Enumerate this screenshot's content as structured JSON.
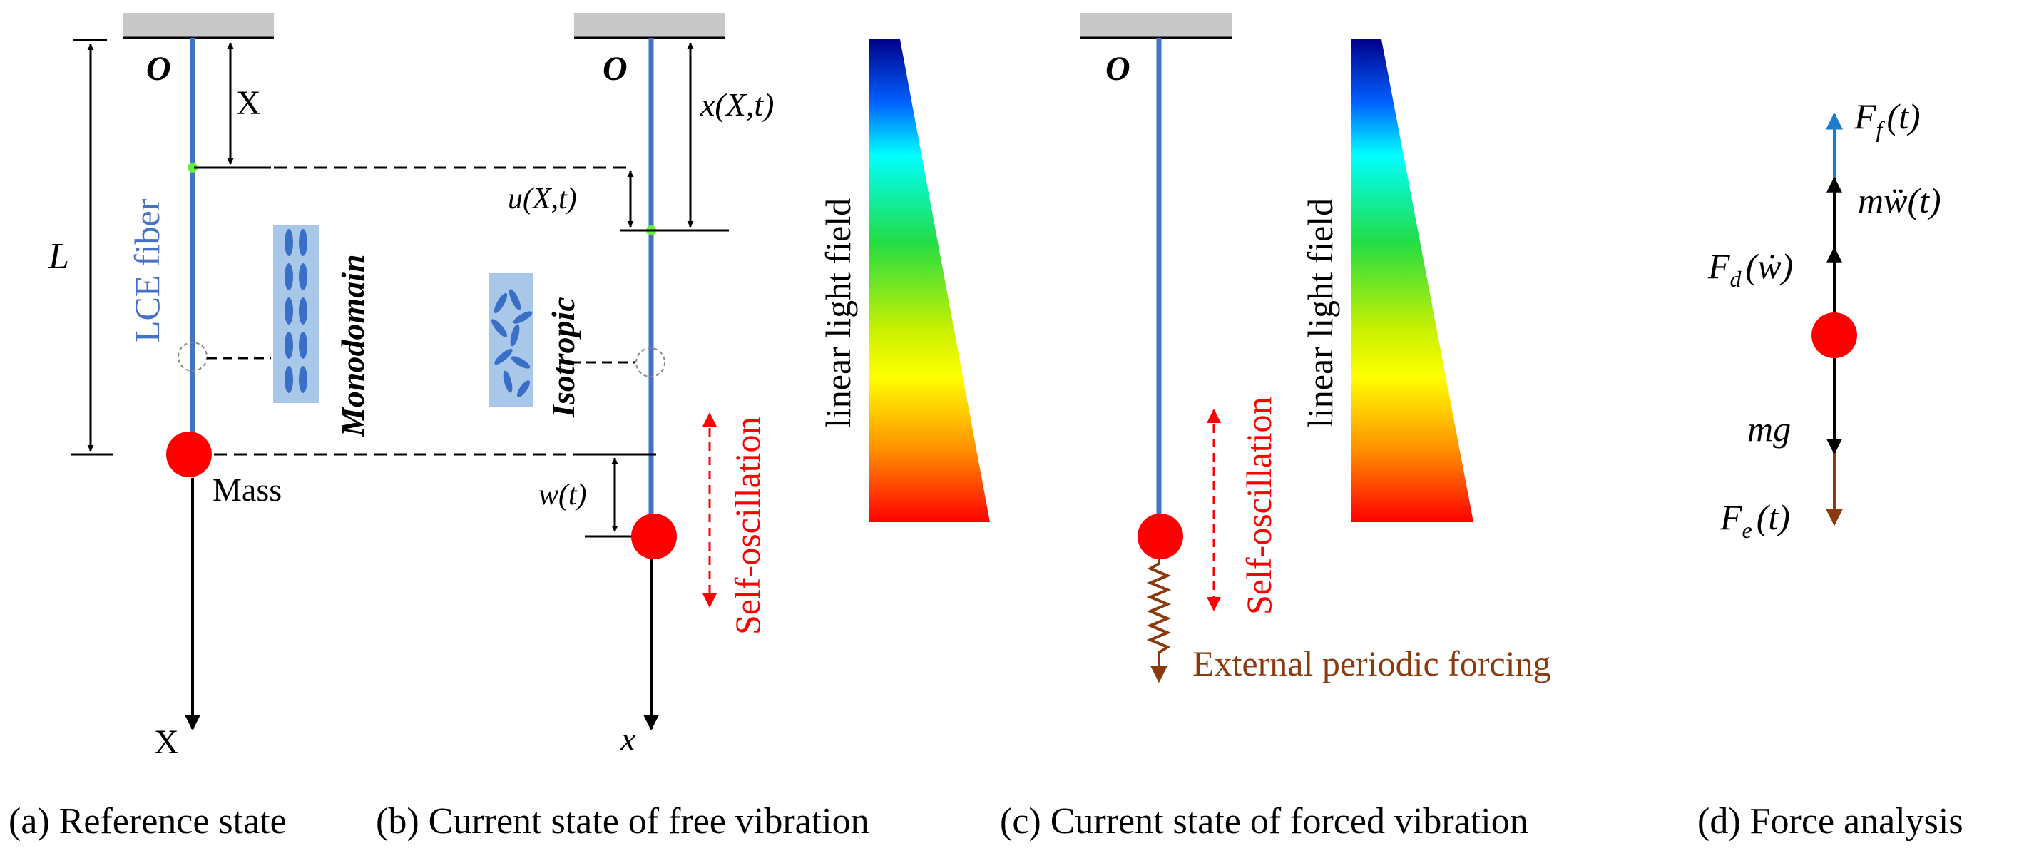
{
  "panel_a": {
    "origin_label": "O",
    "X_label": "X",
    "L_label": "L",
    "fiber_label": "LCE fiber",
    "monodomain_label": "Monodomain",
    "mass_label": "Mass",
    "axis_label": "X"
  },
  "panel_b": {
    "origin_label": "O",
    "x_label": "x(X,t)",
    "u_label": "u(X,t)",
    "isotropic_label": "Isotropic",
    "w_label": "w(t)",
    "self_osc_label": "Self-oscillation",
    "light_label": "linear light field",
    "axis_label": "x"
  },
  "panel_c": {
    "origin_label": "O",
    "self_osc_label": "Self-oscillation",
    "light_label": "linear light field",
    "forcing_label": "External periodic forcing"
  },
  "panel_d": {
    "F_f": "F",
    "F_f_sub": "f",
    "F_f_arg": "(t)",
    "inertia": "mẅ(t)",
    "F_d": "F",
    "F_d_sub": "d",
    "F_d_arg": "(ẇ)",
    "mg": "mg",
    "F_e": "F",
    "F_e_sub": "e",
    "F_e_arg": "(t)"
  },
  "captions": {
    "a": "(a) Reference state",
    "b": "(b) Current state of free vibration",
    "c": "(c) Current state of forced vibration",
    "d": "(d) Force analysis"
  },
  "colors": {
    "fiber": "#4472c4",
    "mass": "#ff0000",
    "self_osc": "#ff0000",
    "forcing": "#8b3a0e",
    "ceiling": "#c8c8c8",
    "fiber_label": "#4472c4",
    "lc_box": "#a9c7e8"
  }
}
